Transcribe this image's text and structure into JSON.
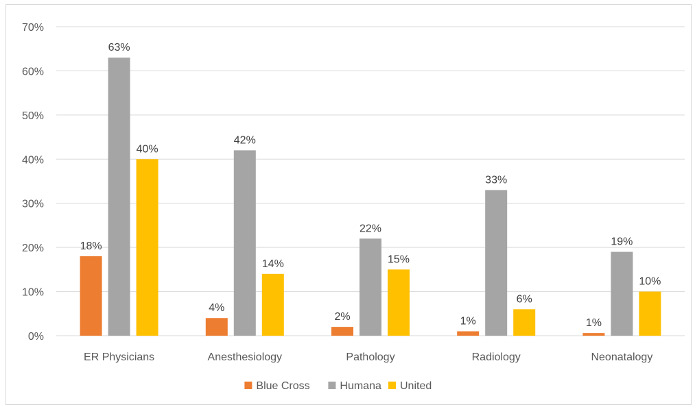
{
  "chart_data": {
    "type": "bar",
    "categories": [
      "ER Physicians",
      "Anesthesiology",
      "Pathology",
      "Radiology",
      "Neonatalogy"
    ],
    "series": [
      {
        "name": "Blue Cross",
        "color": "#ED7D31",
        "values": [
          18,
          4,
          2,
          1,
          0.6
        ],
        "labels": [
          "18%",
          "4%",
          "2%",
          "1%",
          "1%"
        ]
      },
      {
        "name": "Humana",
        "color": "#A5A5A5",
        "values": [
          63,
          42,
          22,
          33,
          19
        ],
        "labels": [
          "63%",
          "42%",
          "22%",
          "33%",
          "19%"
        ]
      },
      {
        "name": "United",
        "color": "#FFC000",
        "values": [
          40,
          14,
          15,
          6,
          10
        ],
        "labels": [
          "40%",
          "14%",
          "15%",
          "6%",
          "10%"
        ]
      }
    ],
    "y_ticks": [
      "0%",
      "10%",
      "20%",
      "30%",
      "40%",
      "50%",
      "60%",
      "70%"
    ],
    "ylim": [
      0,
      70
    ],
    "grid": true,
    "legend_position": "bottom",
    "gridline_color": "#d9d9d9"
  }
}
